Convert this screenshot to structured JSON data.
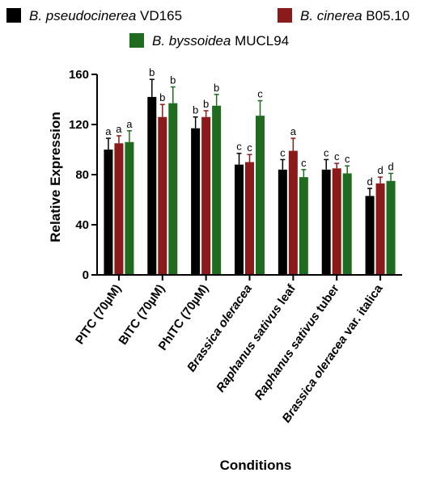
{
  "chart_data": {
    "type": "bar",
    "title": "",
    "xlabel": "Conditions",
    "ylabel": "Relative Expression",
    "ylim": [
      0,
      160
    ],
    "yticks": [
      0,
      40,
      80,
      120,
      160
    ],
    "grid": false,
    "legend_position": "top",
    "categories": [
      "PITC (70µM)",
      "BITC (70µM)",
      "PhITC (70µM)",
      "Brassica oleracea",
      "Raphanus sativus leaf",
      "Raphanus sativus tuber",
      "Brassica oleracea var. italica"
    ],
    "series": [
      {
        "name_italic": "B. pseudocinerea",
        "name_plain": "VD165",
        "color": "#000000",
        "values": [
          100,
          142,
          117,
          88,
          84,
          84,
          63
        ],
        "errors": [
          9,
          14,
          9,
          9,
          8,
          8,
          6
        ],
        "letters": [
          "a",
          "b",
          "b",
          "c",
          "c",
          "c",
          "d"
        ]
      },
      {
        "name_italic": "B. cinerea",
        "name_plain": "B05.10",
        "color": "#8b1a1a",
        "values": [
          105,
          126,
          126,
          90,
          99,
          85,
          73
        ],
        "errors": [
          6,
          10,
          5,
          6,
          10,
          4,
          5
        ],
        "letters": [
          "a",
          "b",
          "b",
          "c",
          "a",
          "c",
          "d"
        ]
      },
      {
        "name_italic": "B. byssoidea",
        "name_plain": "MUCL94",
        "color": "#1f6b1f",
        "values": [
          106,
          137,
          135,
          127,
          78,
          81,
          75
        ],
        "errors": [
          9,
          13,
          9,
          12,
          6,
          6,
          6
        ],
        "letters": [
          "a",
          "b",
          "b",
          "c",
          "c",
          "c",
          "d"
        ]
      }
    ]
  }
}
